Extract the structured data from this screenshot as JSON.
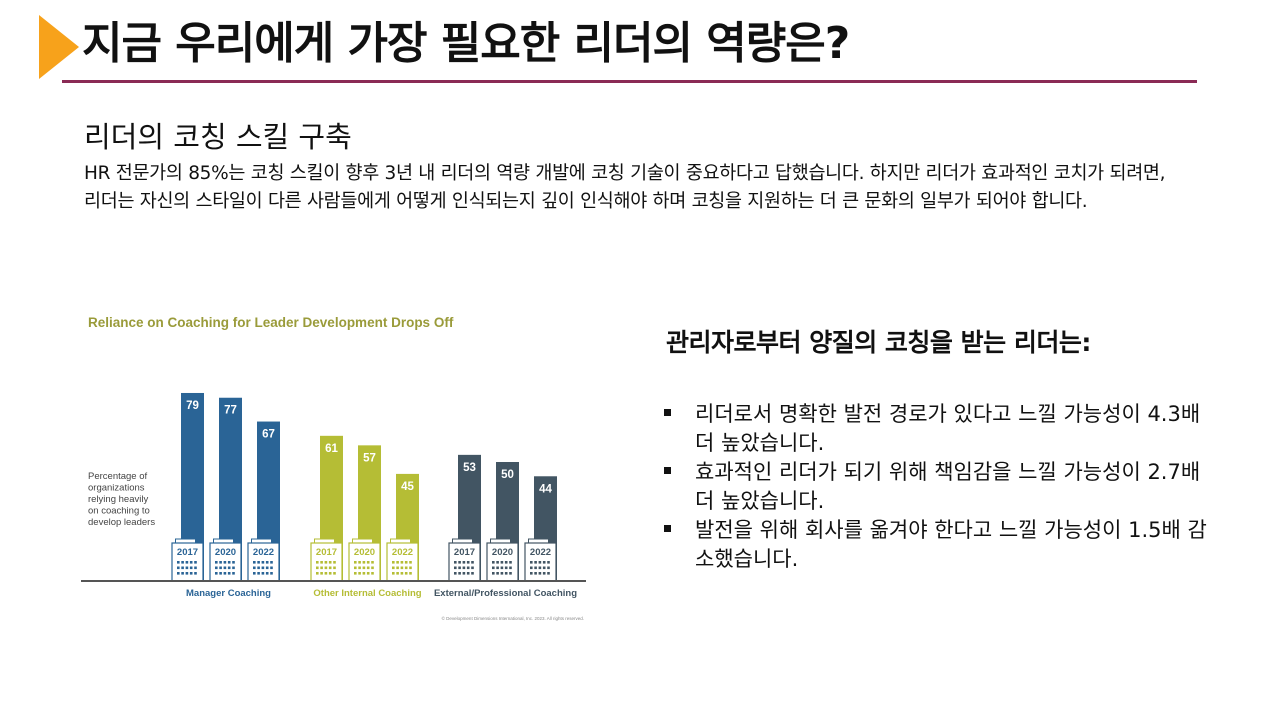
{
  "slide": {
    "title": "지금 우리에게 가장 필요한 리더의 역량은?",
    "subhead": "리더의 코칭 스킬 구축",
    "body": "HR 전문가의 85%는 코칭 스킬이 향후 3년 내 리더의 역량 개발에 코칭 기술이 중요하다고 답했습니다. 하지만 리더가 효과적인 코치가 되려면, 리더는 자신의 스타일이 다른 사람들에게 어떻게 인식되는지 깊이 인식해야 하며 코칭을 지원하는 더 큰 문화의 일부가 되어야 합니다.",
    "right_heading": "관리자로부터 양질의 코칭을 받는 리더는:",
    "bullets": [
      "리더로서 명확한 발전 경로가 있다고 느낄 가능성이 4.3배 더 높았습니다.",
      "효과적인 리더가 되기 위해 책임감을 느낄 가능성이 2.7배 더 높았습니다.",
      "발전을 위해 회사를 옮겨야 한다고 느낄 가능성이 1.5배 감소했습니다."
    ],
    "colors": {
      "arrow": "#f7a21b",
      "rule": "#8a2a55"
    }
  },
  "chart_data": {
    "type": "bar",
    "title": "Reliance on Coaching for Leader Development Drops Off",
    "ylabel": "Percentage of organizations relying heavily on coaching to develop leaders",
    "ylim": [
      0,
      100
    ],
    "footnote": "© Development Dimensions International, Inc. 2023. All rights reserved.",
    "groups": [
      {
        "name": "Manager Coaching",
        "color": "#2a6496",
        "bars": [
          {
            "year": "2017",
            "value": 79
          },
          {
            "year": "2020",
            "value": 77
          },
          {
            "year": "2022",
            "value": 67
          }
        ]
      },
      {
        "name": "Other Internal Coaching",
        "color": "#b5bd35",
        "bars": [
          {
            "year": "2017",
            "value": 61
          },
          {
            "year": "2020",
            "value": 57
          },
          {
            "year": "2022",
            "value": 45
          }
        ]
      },
      {
        "name": "External/Professional Coaching",
        "color": "#425563",
        "bars": [
          {
            "year": "2017",
            "value": 53
          },
          {
            "year": "2020",
            "value": 50
          },
          {
            "year": "2022",
            "value": 44
          }
        ]
      }
    ],
    "colors": {
      "title": "#9a9b3a",
      "axis": "#555555",
      "label": "#444444"
    }
  }
}
